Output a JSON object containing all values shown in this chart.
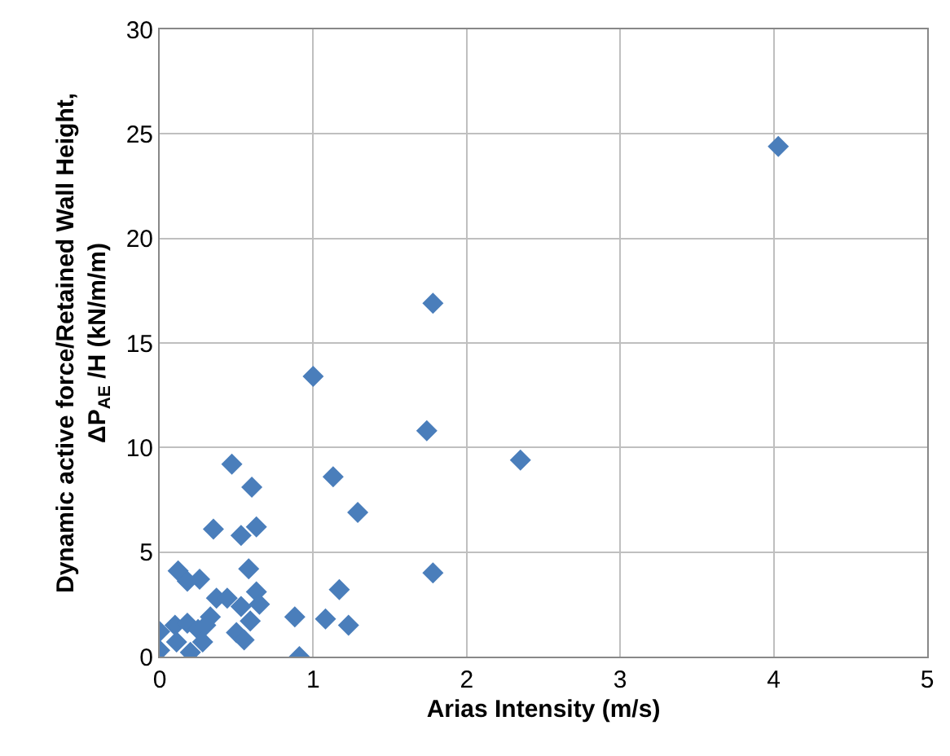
{
  "chart_data": {
    "type": "scatter",
    "xlabel": "Arias Intensity (m/s)",
    "ylabel": "Dynamic active force/Retained Wall Height,\nΔP$_{AE}$ /H (kN/m/m)",
    "xlim": [
      0,
      5
    ],
    "xticks": [
      0,
      1,
      2,
      3,
      4,
      5
    ],
    "ylim": [
      0,
      30
    ],
    "yticks": [
      0,
      5,
      10,
      15,
      20,
      25,
      30
    ],
    "grid": true,
    "marker": "diamond",
    "series": [
      {
        "color": "#4a7ebb",
        "x": [
          4.03,
          1.78,
          1.0,
          1.74,
          2.35,
          1.13,
          1.29,
          0.47,
          0.6,
          0.63,
          0.35,
          0.53,
          1.78,
          1.17,
          1.08,
          1.23,
          0.88,
          0.91,
          0.58,
          0.12,
          0.18,
          0.26,
          0.63,
          0.65,
          0.53,
          0.59,
          0.5,
          0.55,
          0.37,
          0.44,
          0.33,
          0.1,
          0.18,
          0.25,
          0.28,
          0.3,
          0.2,
          0.0,
          0.11,
          0.0
        ],
        "values": [
          24.4,
          16.9,
          13.4,
          10.8,
          9.4,
          8.6,
          6.9,
          9.2,
          8.1,
          6.2,
          6.1,
          5.8,
          4.0,
          3.2,
          1.8,
          1.5,
          1.9,
          0.0,
          4.2,
          4.1,
          3.6,
          3.7,
          3.1,
          2.5,
          2.4,
          1.7,
          1.15,
          0.8,
          2.8,
          2.8,
          1.9,
          1.5,
          1.6,
          1.3,
          0.7,
          1.5,
          0.2,
          0.3,
          0.7,
          1.2
        ]
      }
    ]
  }
}
